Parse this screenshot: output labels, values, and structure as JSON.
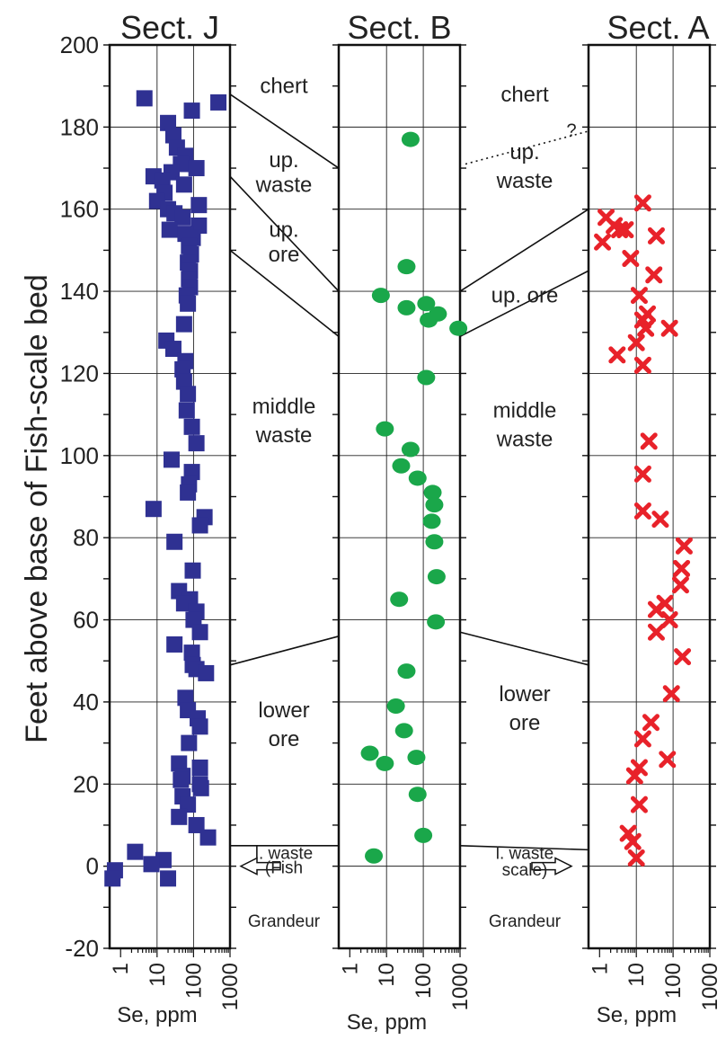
{
  "chart_data": {
    "type": "scatter",
    "ylabel": "Feet above base of Fish-scale bed",
    "ylim": [
      -20,
      200
    ],
    "yticks": [
      -20,
      0,
      20,
      40,
      60,
      80,
      100,
      120,
      140,
      160,
      180,
      200
    ],
    "x_scale": "log",
    "xlim": [
      0.5,
      1000
    ],
    "xticks": [
      "1",
      "10",
      "100",
      "1000"
    ],
    "xlabel": "Se, ppm",
    "grid": true,
    "panels": [
      {
        "title": "Sect. J",
        "marker": "square",
        "color": "#2f3192",
        "points": [
          {
            "x": 4.5,
            "y": 187
          },
          {
            "x": 480,
            "y": 186
          },
          {
            "x": 90,
            "y": 184
          },
          {
            "x": 20,
            "y": 181
          },
          {
            "x": 28,
            "y": 178
          },
          {
            "x": 35,
            "y": 175
          },
          {
            "x": 60,
            "y": 173
          },
          {
            "x": 45,
            "y": 171
          },
          {
            "x": 120,
            "y": 170
          },
          {
            "x": 25,
            "y": 169
          },
          {
            "x": 8,
            "y": 168
          },
          {
            "x": 14,
            "y": 167
          },
          {
            "x": 55,
            "y": 166
          },
          {
            "x": 16,
            "y": 164
          },
          {
            "x": 10,
            "y": 162
          },
          {
            "x": 140,
            "y": 161
          },
          {
            "x": 20,
            "y": 160
          },
          {
            "x": 30,
            "y": 159
          },
          {
            "x": 50,
            "y": 158
          },
          {
            "x": 140,
            "y": 156
          },
          {
            "x": 22,
            "y": 155
          },
          {
            "x": 60,
            "y": 154
          },
          {
            "x": 95,
            "y": 153
          },
          {
            "x": 75,
            "y": 151
          },
          {
            "x": 85,
            "y": 149
          },
          {
            "x": 70,
            "y": 147
          },
          {
            "x": 80,
            "y": 145
          },
          {
            "x": 75,
            "y": 143
          },
          {
            "x": 80,
            "y": 141
          },
          {
            "x": 65,
            "y": 139
          },
          {
            "x": 70,
            "y": 137
          },
          {
            "x": 55,
            "y": 132
          },
          {
            "x": 18,
            "y": 128
          },
          {
            "x": 28,
            "y": 126
          },
          {
            "x": 60,
            "y": 123
          },
          {
            "x": 50,
            "y": 121
          },
          {
            "x": 55,
            "y": 118
          },
          {
            "x": 70,
            "y": 115
          },
          {
            "x": 65,
            "y": 111
          },
          {
            "x": 90,
            "y": 107
          },
          {
            "x": 120,
            "y": 103
          },
          {
            "x": 25,
            "y": 99
          },
          {
            "x": 90,
            "y": 96
          },
          {
            "x": 75,
            "y": 93
          },
          {
            "x": 70,
            "y": 91
          },
          {
            "x": 8,
            "y": 87
          },
          {
            "x": 200,
            "y": 85
          },
          {
            "x": 150,
            "y": 83
          },
          {
            "x": 30,
            "y": 79
          },
          {
            "x": 95,
            "y": 72
          },
          {
            "x": 40,
            "y": 67
          },
          {
            "x": 80,
            "y": 65
          },
          {
            "x": 55,
            "y": 64
          },
          {
            "x": 120,
            "y": 62
          },
          {
            "x": 100,
            "y": 60
          },
          {
            "x": 150,
            "y": 57
          },
          {
            "x": 30,
            "y": 54
          },
          {
            "x": 90,
            "y": 52
          },
          {
            "x": 95,
            "y": 49
          },
          {
            "x": 120,
            "y": 48
          },
          {
            "x": 220,
            "y": 47
          },
          {
            "x": 60,
            "y": 41
          },
          {
            "x": 70,
            "y": 38
          },
          {
            "x": 130,
            "y": 36
          },
          {
            "x": 150,
            "y": 34
          },
          {
            "x": 75,
            "y": 30
          },
          {
            "x": 40,
            "y": 25
          },
          {
            "x": 150,
            "y": 24
          },
          {
            "x": 50,
            "y": 22
          },
          {
            "x": 45,
            "y": 21
          },
          {
            "x": 150,
            "y": 20
          },
          {
            "x": 160,
            "y": 19
          },
          {
            "x": 50,
            "y": 17
          },
          {
            "x": 70,
            "y": 15
          },
          {
            "x": 40,
            "y": 12
          },
          {
            "x": 120,
            "y": 10
          },
          {
            "x": 250,
            "y": 7
          },
          {
            "x": 2.5,
            "y": 3.5
          },
          {
            "x": 15,
            "y": 1.5
          },
          {
            "x": 7,
            "y": 0.5
          },
          {
            "x": 0.7,
            "y": -1
          },
          {
            "x": 0.6,
            "y": -3
          },
          {
            "x": 20,
            "y": -3
          }
        ]
      },
      {
        "title": "Sect. B",
        "marker": "circle",
        "color": "#1aa74a",
        "points": [
          {
            "x": 45,
            "y": 177
          },
          {
            "x": 35,
            "y": 146
          },
          {
            "x": 7,
            "y": 139
          },
          {
            "x": 120,
            "y": 137
          },
          {
            "x": 35,
            "y": 136
          },
          {
            "x": 250,
            "y": 134.5
          },
          {
            "x": 140,
            "y": 133
          },
          {
            "x": 900,
            "y": 131
          },
          {
            "x": 120,
            "y": 119
          },
          {
            "x": 9,
            "y": 106.5
          },
          {
            "x": 45,
            "y": 101.5
          },
          {
            "x": 25,
            "y": 97.5
          },
          {
            "x": 70,
            "y": 94.5
          },
          {
            "x": 180,
            "y": 91
          },
          {
            "x": 200,
            "y": 88
          },
          {
            "x": 170,
            "y": 84
          },
          {
            "x": 200,
            "y": 79
          },
          {
            "x": 230,
            "y": 70.5
          },
          {
            "x": 22,
            "y": 65
          },
          {
            "x": 220,
            "y": 59.5
          },
          {
            "x": 35,
            "y": 47.5
          },
          {
            "x": 18,
            "y": 39
          },
          {
            "x": 30,
            "y": 33
          },
          {
            "x": 3.5,
            "y": 27.5
          },
          {
            "x": 65,
            "y": 26.5
          },
          {
            "x": 9,
            "y": 25
          },
          {
            "x": 70,
            "y": 17.5
          },
          {
            "x": 100,
            "y": 7.5
          },
          {
            "x": 4.5,
            "y": 2.5
          }
        ]
      },
      {
        "title": "Sect. A",
        "marker": "cross",
        "color": "#e8222a",
        "points": [
          {
            "x": 15,
            "y": 161.5
          },
          {
            "x": 1.5,
            "y": 158
          },
          {
            "x": 2.5,
            "y": 156
          },
          {
            "x": 3.5,
            "y": 155
          },
          {
            "x": 5,
            "y": 155
          },
          {
            "x": 35,
            "y": 153.5
          },
          {
            "x": 1.2,
            "y": 152
          },
          {
            "x": 7,
            "y": 148
          },
          {
            "x": 30,
            "y": 144
          },
          {
            "x": 12,
            "y": 139
          },
          {
            "x": 20,
            "y": 134.5
          },
          {
            "x": 15,
            "y": 133
          },
          {
            "x": 18,
            "y": 131
          },
          {
            "x": 80,
            "y": 131
          },
          {
            "x": 10,
            "y": 127.5
          },
          {
            "x": 3,
            "y": 124.5
          },
          {
            "x": 15,
            "y": 122
          },
          {
            "x": 22,
            "y": 103.5
          },
          {
            "x": 15,
            "y": 95.5
          },
          {
            "x": 15,
            "y": 86.5
          },
          {
            "x": 45,
            "y": 84.5
          },
          {
            "x": 200,
            "y": 78
          },
          {
            "x": 170,
            "y": 72.5
          },
          {
            "x": 160,
            "y": 68.5
          },
          {
            "x": 60,
            "y": 64
          },
          {
            "x": 35,
            "y": 62.5
          },
          {
            "x": 80,
            "y": 60
          },
          {
            "x": 35,
            "y": 57
          },
          {
            "x": 180,
            "y": 51
          },
          {
            "x": 90,
            "y": 42
          },
          {
            "x": 25,
            "y": 35
          },
          {
            "x": 15,
            "y": 31
          },
          {
            "x": 70,
            "y": 26
          },
          {
            "x": 12,
            "y": 24
          },
          {
            "x": 9,
            "y": 22
          },
          {
            "x": 12,
            "y": 15
          },
          {
            "x": 6,
            "y": 8
          },
          {
            "x": 8,
            "y": 6
          },
          {
            "x": 10,
            "y": 2
          }
        ]
      }
    ],
    "annotations": {
      "left_gap": [
        {
          "text": "chert",
          "y": 190
        },
        {
          "text": "up.",
          "y": 172
        },
        {
          "text": "waste",
          "y": 166
        },
        {
          "text": "up.",
          "y": 155
        },
        {
          "text": "ore",
          "y": 149
        },
        {
          "text": "middle",
          "y": 112
        },
        {
          "text": "waste",
          "y": 105
        },
        {
          "text": "lower",
          "y": 38
        },
        {
          "text": "ore",
          "y": 31
        },
        {
          "text": "l. waste",
          "y": 3.5
        },
        {
          "text": "(Fish",
          "y": 0
        },
        {
          "text": "Grandeur",
          "y": -13
        }
      ],
      "right_gap": [
        {
          "text": "chert",
          "y": 188
        },
        {
          "text": "?",
          "y": 179.5
        },
        {
          "text": "up.",
          "y": 174
        },
        {
          "text": "waste",
          "y": 167
        },
        {
          "text": "up. ore",
          "y": 139
        },
        {
          "text": "middle",
          "y": 111
        },
        {
          "text": "waste",
          "y": 104
        },
        {
          "text": "lower",
          "y": 42
        },
        {
          "text": "ore",
          "y": 35
        },
        {
          "text": "l. waste",
          "y": 3.5
        },
        {
          "text": "scale)",
          "y": -0.5
        },
        {
          "text": "Grandeur",
          "y": -13
        }
      ]
    },
    "correlation_lines": [
      {
        "gap": "left",
        "y_start": 188,
        "y_end": 170
      },
      {
        "gap": "left",
        "y_start": 168,
        "y_end": 140
      },
      {
        "gap": "left",
        "y_start": 150,
        "y_end": 129
      },
      {
        "gap": "left",
        "y_start": 49,
        "y_end": 56
      },
      {
        "gap": "left",
        "y_start": 5,
        "y_end": 5
      },
      {
        "gap": "right",
        "y_start": 171,
        "y_end": 179,
        "dashed": true
      },
      {
        "gap": "right",
        "y_start": 140,
        "y_end": 160
      },
      {
        "gap": "right",
        "y_start": 129,
        "y_end": 145
      },
      {
        "gap": "right",
        "y_start": 57,
        "y_end": 49
      },
      {
        "gap": "right",
        "y_start": 5,
        "y_end": 4
      }
    ]
  }
}
